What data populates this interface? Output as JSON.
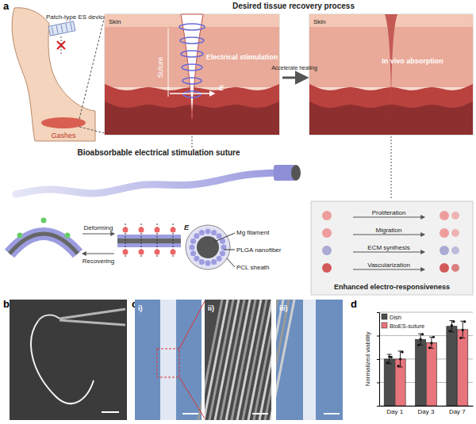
{
  "panel_labels": [
    "a",
    "b",
    "c",
    "d"
  ],
  "panel_a": {
    "title": "Desired tissue recovery process",
    "patch_label": "Patch-type ES devices",
    "wound_label": "Gashes",
    "skin_labels": [
      "Skin",
      "Skin"
    ],
    "suture_label": "Suture",
    "stimulation_label": "Electrical stimulation",
    "field_labels": [
      "E",
      "E"
    ],
    "transition_label": "Accelerate healing",
    "absorption_label": "In vivo absorption",
    "device_title": "Bioabsorbable electrical stimulation suture",
    "deform_labels": [
      "Deforming",
      "Recovering"
    ],
    "layers": [
      "Mg filament",
      "PLGA nanofiber",
      "PCL sheath"
    ],
    "responses": [
      "Proliferation",
      "Migration",
      "ECM synthesis",
      "Vascularization"
    ],
    "response_title": "Enhanced electro-responsiveness"
  },
  "panel_c": {
    "sublabels": [
      "i)",
      "ii)",
      "iii)"
    ]
  },
  "chart_data": {
    "type": "bar",
    "y_label": "Normalized viability",
    "categories": [
      "Day 1",
      "Day 3",
      "Day 7"
    ],
    "series": [
      {
        "name": "Dish",
        "color": "#4d4d4d",
        "values": [
          1.0,
          1.42,
          1.7
        ],
        "errors": [
          0.1,
          0.12,
          0.12
        ],
        "points": [
          [
            0.92,
            1.05,
            1.04
          ],
          [
            1.3,
            1.42,
            1.53
          ],
          [
            1.6,
            1.72,
            1.8
          ]
        ]
      },
      {
        "name": "BioES-suture",
        "color": "#e8747c",
        "values": [
          1.0,
          1.35,
          1.63
        ],
        "errors": [
          0.17,
          0.12,
          0.18
        ],
        "points": [
          [
            0.85,
            1.0,
            1.15
          ],
          [
            1.24,
            1.34,
            1.47
          ],
          [
            1.45,
            1.62,
            1.8
          ]
        ]
      }
    ],
    "ylim": [
      0,
      2
    ],
    "yticks": [
      0,
      0.5,
      1,
      1.5,
      2
    ],
    "grid": true,
    "legend": "top-left",
    "tick_labels": "x"
  }
}
